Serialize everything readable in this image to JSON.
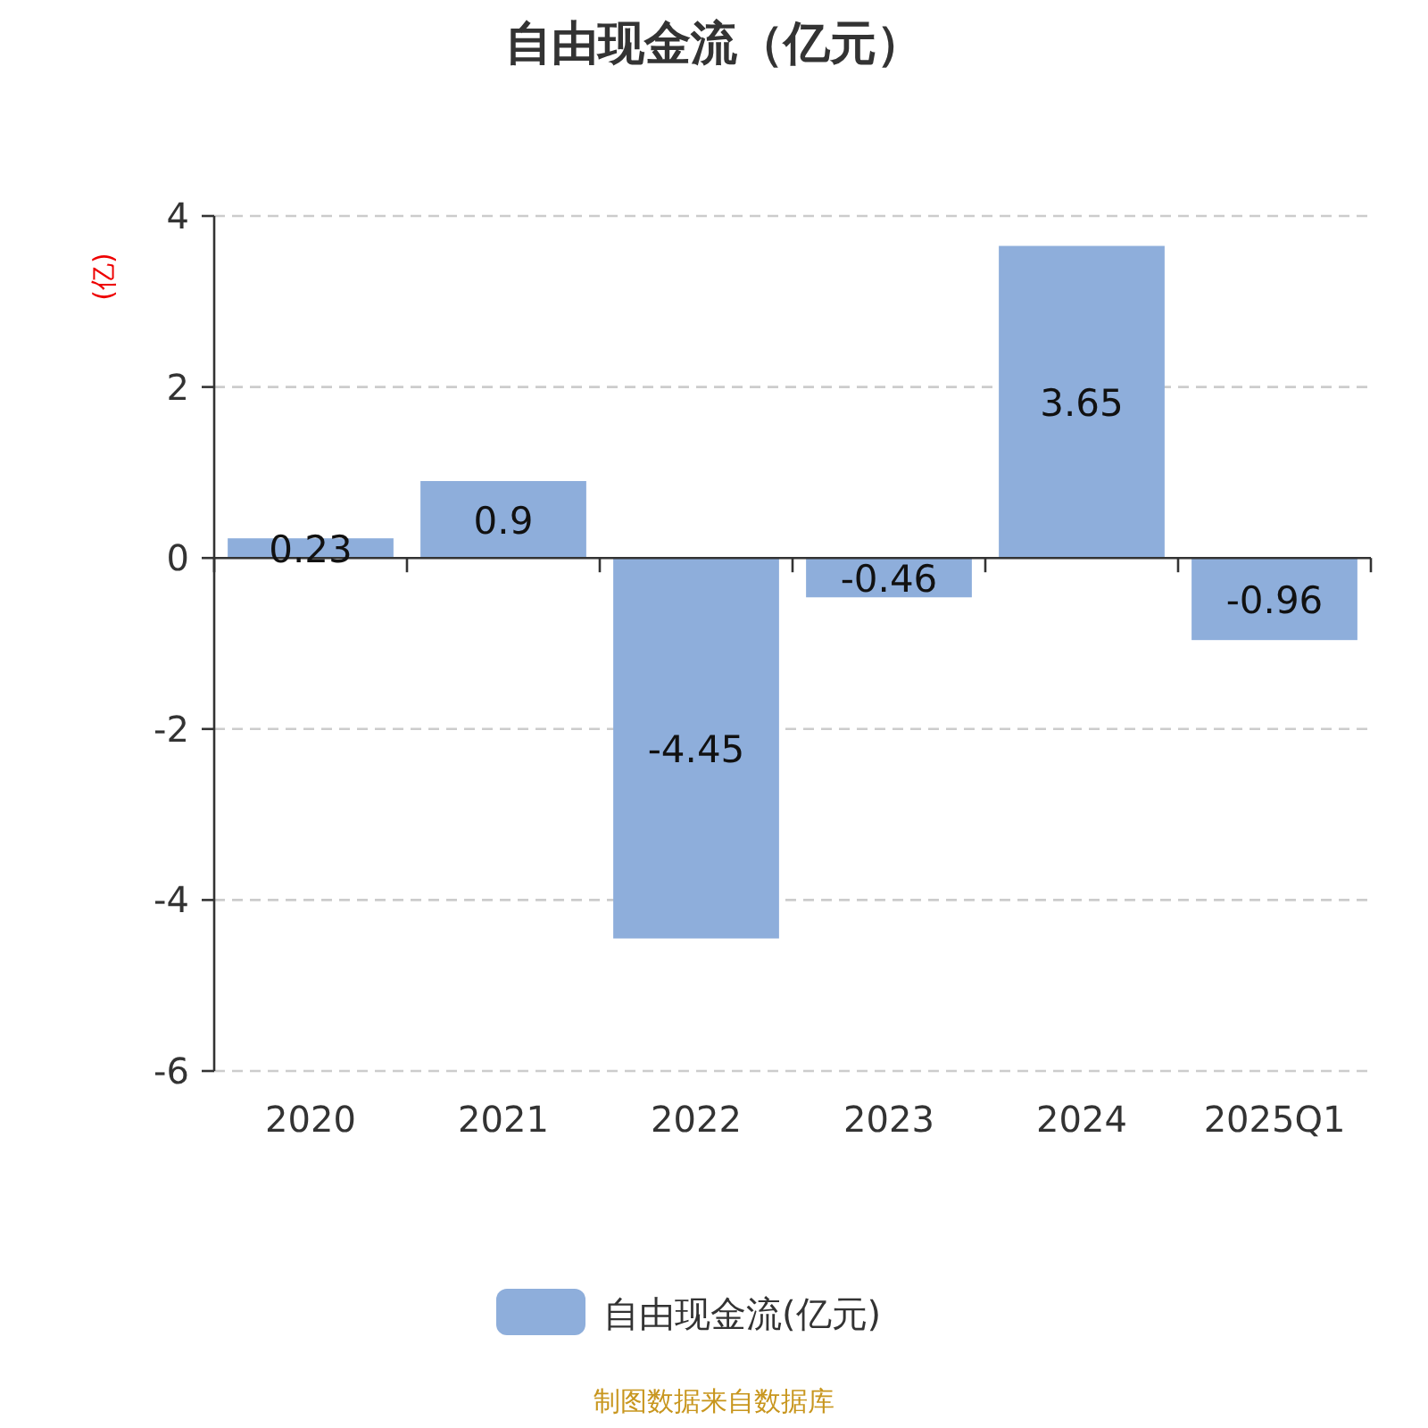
{
  "chart_data": {
    "type": "bar",
    "title": "自由现金流（亿元）",
    "ylabel": "(亿)",
    "categories": [
      "2020",
      "2021",
      "2022",
      "2023",
      "2024",
      "2025Q1"
    ],
    "series": [
      {
        "name": "自由现金流(亿元)",
        "color": "#8eaedb",
        "values": [
          0.23,
          0.9,
          -4.45,
          -0.46,
          3.65,
          -0.96
        ]
      }
    ],
    "ylim": [
      -6,
      4
    ],
    "yticks": [
      -6,
      -4,
      -2,
      0,
      2,
      4
    ],
    "grid": "y",
    "legend": "bottom",
    "data_labels": true,
    "annotations": [
      "制图数据来自数据库"
    ]
  }
}
